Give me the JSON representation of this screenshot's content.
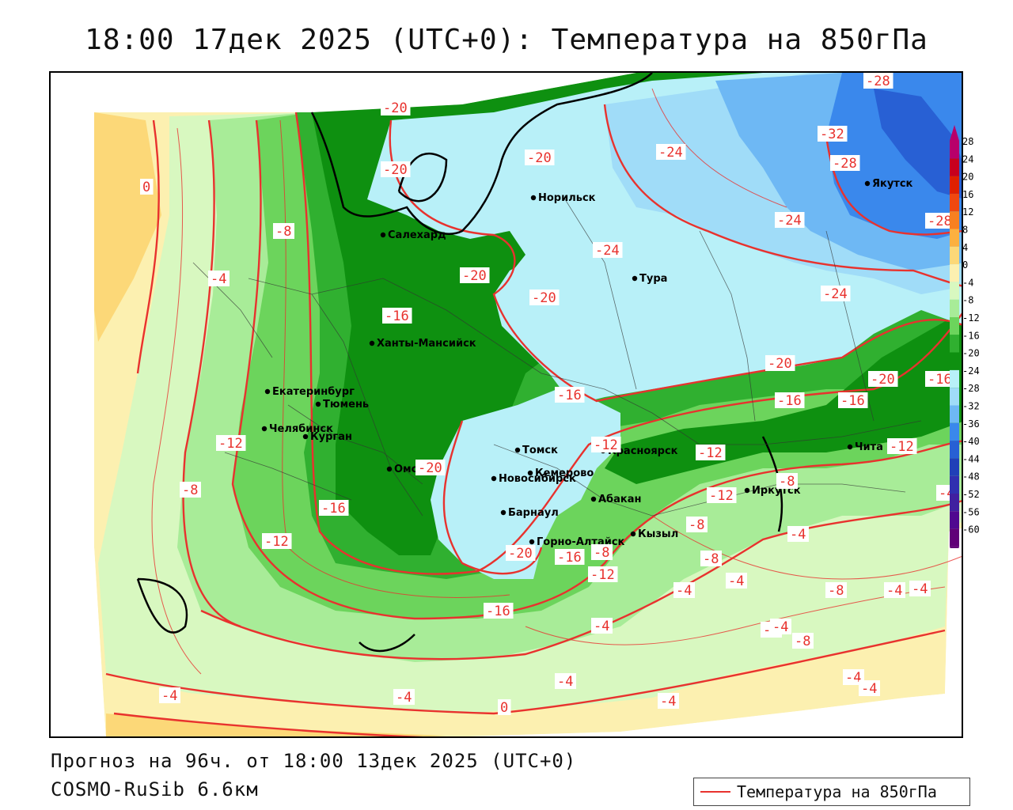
{
  "title": "18:00 17дек 2025 (UTC+0): Температура на 850гПа",
  "footer": {
    "forecast": "Прогноз на 96ч. от 18:00 13дек 2025 (UTC+0)",
    "model": "COSMO-RuSib 6.6км"
  },
  "legend": {
    "label": "Температура на 850гПа",
    "color": "#e8322e"
  },
  "scale": {
    "ticks": [
      "28",
      "24",
      "20",
      "16",
      "12",
      "8",
      "4",
      "0",
      "-4",
      "-8",
      "-12",
      "-16",
      "-20",
      "-24",
      "-28",
      "-32",
      "-36",
      "-40",
      "-44",
      "-48",
      "-52",
      "-56",
      "-60"
    ],
    "colors": [
      "#b8006a",
      "#c8001e",
      "#e02000",
      "#f04810",
      "#f88020",
      "#fcb040",
      "#fcd878",
      "#fcf0b0",
      "#d8f8c0",
      "#a8ec98",
      "#6cd45c",
      "#30b030",
      "#0e9010",
      "#b8f0f8",
      "#a0dcf8",
      "#6eb8f4",
      "#3a88ec",
      "#2860d4",
      "#2040b8",
      "#3030b0",
      "#4020a0",
      "#500890",
      "#600078"
    ]
  },
  "cities": [
    {
      "name": "Норильск"
    },
    {
      "name": "Салехард"
    },
    {
      "name": "Тура"
    },
    {
      "name": "Якутск"
    },
    {
      "name": "Ханты-Мансийск"
    },
    {
      "name": "Екатеринбург"
    },
    {
      "name": "Тюмень"
    },
    {
      "name": "Челябинск"
    },
    {
      "name": "Курган"
    },
    {
      "name": "Омск"
    },
    {
      "name": "Новосибирск"
    },
    {
      "name": "Томск"
    },
    {
      "name": "Кемерово"
    },
    {
      "name": "Красноярск"
    },
    {
      "name": "Барнаул"
    },
    {
      "name": "Абакан"
    },
    {
      "name": "Иркутск"
    },
    {
      "name": "Чита"
    },
    {
      "name": "Кызыл"
    },
    {
      "name": "Горно-Алтайск"
    }
  ],
  "contour_labels": [
    "-20",
    "-20",
    "-20",
    "-24",
    "-28",
    "-32",
    "-28",
    "-28",
    "-24",
    "-24",
    "-20",
    "-24",
    "-20",
    "-16",
    "-8",
    "-4",
    "0",
    "-12",
    "-20",
    "-16",
    "-16",
    "-12",
    "-16",
    "-20",
    "-16",
    "-20",
    "-12",
    "-12",
    "-8",
    "-16",
    "-12",
    "-8",
    "-12",
    "-16",
    "-20",
    "-16",
    "-12",
    "-8",
    "-8",
    "-4",
    "-4",
    "-8",
    "-8",
    "-4",
    "-4",
    "-4",
    "-8",
    "-4",
    "-4",
    "-8",
    "-4",
    "-4",
    "-4",
    "-4",
    "-4",
    "0",
    "-4",
    "-4"
  ]
}
